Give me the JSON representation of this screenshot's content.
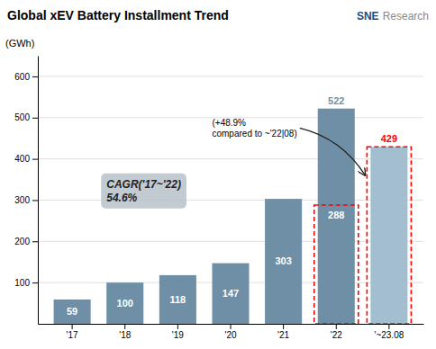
{
  "chart_data": {
    "type": "bar",
    "title": "Global xEV Battery Installment Trend",
    "y_label": "(GWh)",
    "categories": [
      "'17",
      "'18",
      "'19",
      "'20",
      "'21",
      "'22",
      "'~23.08"
    ],
    "values": [
      59,
      100,
      118,
      147,
      303,
      522,
      429
    ],
    "colors": [
      "#6e8fa5",
      "#6e8fa5",
      "#6e8fa5",
      "#6e8fa5",
      "#6e8fa5",
      "#6e8fa5",
      "#a3bfcf"
    ],
    "partial_values": [
      null,
      null,
      null,
      null,
      null,
      288,
      null
    ],
    "ylim": [
      0,
      650
    ],
    "yticks": [
      100,
      200,
      300,
      400,
      500,
      600
    ],
    "grid": true,
    "data_labels": true,
    "annotations": [
      "CAGR('17~'22)\n54.6%",
      "(+48.9%\ncompared to ~'22|08)",
      "SNE",
      "Research"
    ]
  }
}
